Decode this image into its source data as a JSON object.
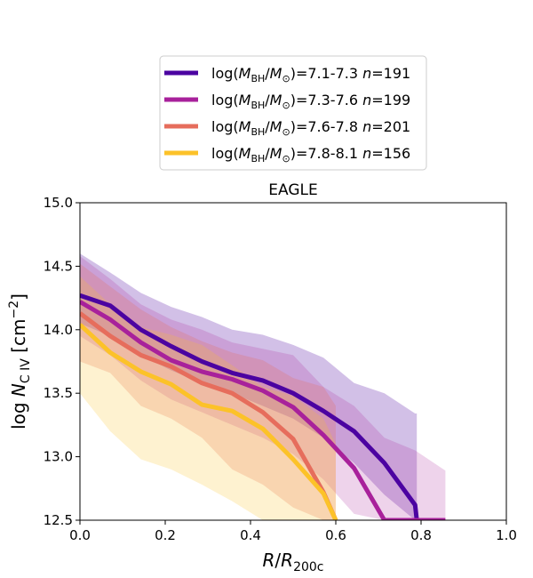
{
  "chart_data": {
    "type": "line",
    "title": "EAGLE",
    "xlabel": "R/R_200c",
    "ylabel": "log N_C IV [cm^-2]",
    "xlim": [
      0.0,
      1.0
    ],
    "ylim": [
      12.5,
      15.0
    ],
    "xticks": [
      "0.0",
      "0.2",
      "0.4",
      "0.6",
      "0.8",
      "1.0"
    ],
    "yticks": [
      "12.5",
      "13.0",
      "13.5",
      "14.0",
      "14.5",
      "15.0"
    ],
    "grid": false,
    "legend_position": "above plot",
    "series": [
      {
        "name": "log(M_BH/M_⊙)=7.1-7.3 n=191",
        "legend_prefix": "log(",
        "legend_sub": "BH",
        "legend_mid": "/",
        "legend_sub2": "⊙",
        "legend_range": ")=7.1-7.3 ",
        "legend_n": "=191",
        "color": "#4b03a1",
        "band_opacity": 0.25,
        "x": [
          0.0,
          0.071,
          0.143,
          0.214,
          0.286,
          0.357,
          0.429,
          0.5,
          0.571,
          0.643,
          0.714,
          0.786,
          0.79
        ],
        "median": [
          14.27,
          14.19,
          14.0,
          13.87,
          13.75,
          13.66,
          13.6,
          13.5,
          13.36,
          13.2,
          12.95,
          12.62,
          12.5
        ],
        "upper": [
          14.6,
          14.45,
          14.29,
          14.18,
          14.1,
          14.0,
          13.96,
          13.88,
          13.78,
          13.58,
          13.5,
          13.34,
          13.34
        ],
        "lower": [
          14.05,
          13.95,
          13.8,
          13.68,
          13.58,
          13.5,
          13.4,
          13.3,
          13.15,
          12.95,
          12.7,
          12.5,
          12.5
        ]
      },
      {
        "name": "log(M_BH/M_⊙)=7.3-7.6 n=199",
        "legend_prefix": "log(",
        "legend_sub": "BH",
        "legend_mid": "/",
        "legend_sub2": "⊙",
        "legend_range": ")=7.3-7.6 ",
        "legend_n": "=199",
        "color": "#a8219b",
        "band_opacity": 0.2,
        "x": [
          0.0,
          0.071,
          0.143,
          0.214,
          0.286,
          0.357,
          0.429,
          0.5,
          0.571,
          0.643,
          0.714,
          0.786,
          0.857
        ],
        "median": [
          14.22,
          14.08,
          13.9,
          13.76,
          13.67,
          13.61,
          13.52,
          13.39,
          13.17,
          12.91,
          12.5,
          12.5,
          12.5
        ],
        "upper": [
          14.58,
          14.4,
          14.2,
          14.08,
          14.0,
          13.9,
          13.85,
          13.8,
          13.55,
          13.4,
          13.15,
          13.05,
          12.89
        ],
        "lower": [
          13.95,
          13.8,
          13.6,
          13.45,
          13.35,
          13.25,
          13.15,
          13.02,
          12.82,
          12.55,
          12.5,
          12.5,
          12.5
        ]
      },
      {
        "name": "log(M_BH/M_⊙)=7.6-7.8 n=201",
        "legend_prefix": "log(",
        "legend_sub": "BH",
        "legend_mid": "/",
        "legend_sub2": "⊙",
        "legend_range": ")=7.6-7.8 ",
        "legend_n": "=201",
        "color": "#e66d5c",
        "band_opacity": 0.25,
        "x": [
          0.0,
          0.071,
          0.143,
          0.214,
          0.286,
          0.357,
          0.429,
          0.5,
          0.571,
          0.6
        ],
        "median": [
          14.13,
          13.95,
          13.8,
          13.71,
          13.58,
          13.5,
          13.35,
          13.14,
          12.72,
          12.5
        ],
        "upper": [
          14.52,
          14.34,
          14.16,
          14.02,
          13.91,
          13.82,
          13.76,
          13.62,
          13.55,
          13.4
        ],
        "lower": [
          13.75,
          13.66,
          13.4,
          13.3,
          13.15,
          12.9,
          12.78,
          12.6,
          12.5,
          12.5
        ]
      },
      {
        "name": "log(M_BH/M_⊙)=7.8-8.1 n=156",
        "legend_prefix": "log(",
        "legend_sub": "BH",
        "legend_mid": "/",
        "legend_sub2": "⊙",
        "legend_range": ")=7.8-8.1 ",
        "legend_n": "=156",
        "color": "#fcc229",
        "band_opacity": 0.22,
        "x": [
          0.0,
          0.071,
          0.143,
          0.214,
          0.286,
          0.357,
          0.429,
          0.5,
          0.571,
          0.6
        ],
        "median": [
          14.04,
          13.82,
          13.67,
          13.57,
          13.41,
          13.36,
          13.22,
          12.98,
          12.71,
          12.5
        ],
        "upper": [
          14.42,
          14.2,
          14.02,
          13.96,
          13.88,
          13.72,
          13.55,
          13.48,
          13.3,
          13.1
        ],
        "lower": [
          13.5,
          13.2,
          12.98,
          12.9,
          12.78,
          12.65,
          12.5,
          12.5,
          12.5,
          12.5
        ]
      }
    ]
  }
}
